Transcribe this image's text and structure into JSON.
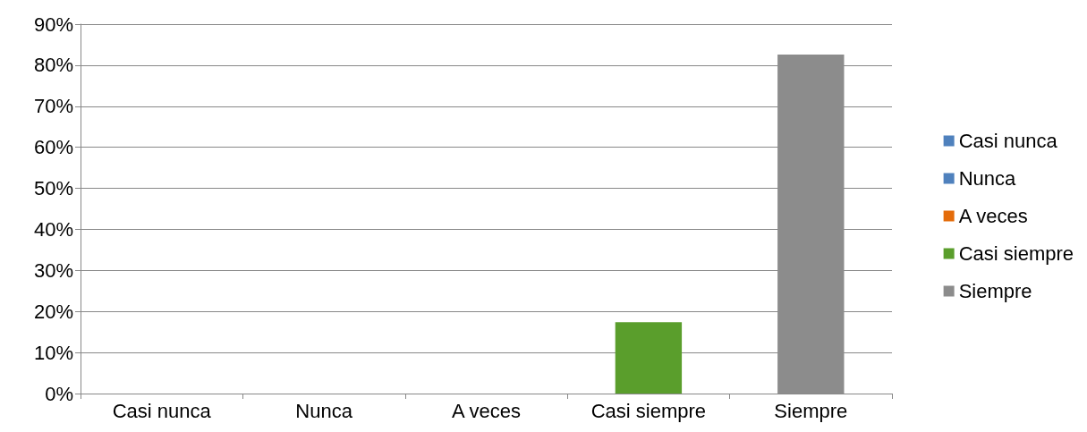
{
  "chart_data": {
    "type": "bar",
    "categories": [
      "Casi nunca",
      "Nunca",
      "A veces",
      "Casi siempre",
      "Siempre"
    ],
    "stacked": true,
    "series": [
      {
        "name": "Casi nunca",
        "color": "#4f81bd",
        "values": [
          0,
          null,
          null,
          null,
          null
        ]
      },
      {
        "name": "Nunca",
        "color": "#4f81bd",
        "values": [
          null,
          0,
          null,
          null,
          null
        ]
      },
      {
        "name": "A veces",
        "color": "#e46c0a",
        "values": [
          null,
          null,
          0,
          null,
          null
        ]
      },
      {
        "name": "Casi siempre",
        "color": "#5a9e2c",
        "values": [
          null,
          null,
          null,
          17.4,
          null
        ]
      },
      {
        "name": "Siempre",
        "color": "#8c8c8c",
        "values": [
          null,
          null,
          null,
          null,
          82.6
        ]
      }
    ],
    "ylim": [
      0,
      90
    ],
    "yticks": [
      {
        "value": 0,
        "label": "0%"
      },
      {
        "value": 10,
        "label": "10%"
      },
      {
        "value": 20,
        "label": "20%"
      },
      {
        "value": 30,
        "label": "30%"
      },
      {
        "value": 40,
        "label": "40%"
      },
      {
        "value": 50,
        "label": "50%"
      },
      {
        "value": 60,
        "label": "60%"
      },
      {
        "value": 70,
        "label": "70%"
      },
      {
        "value": 80,
        "label": "80%"
      },
      {
        "value": 90,
        "label": "90%"
      }
    ],
    "grid": "y",
    "legend": "right"
  }
}
